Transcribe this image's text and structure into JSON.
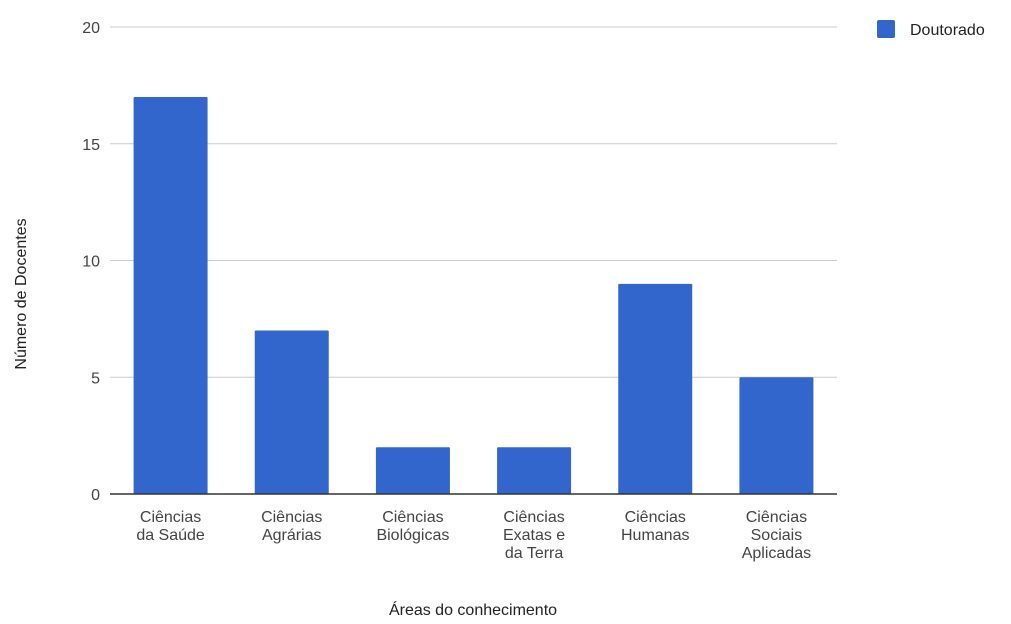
{
  "chart_data": {
    "type": "bar",
    "categories": [
      [
        "Ciências",
        "da Saúde"
      ],
      [
        "Ciências",
        "Agrárias"
      ],
      [
        "Ciências",
        "Biológicas"
      ],
      [
        "Ciências",
        "Exatas e",
        "da Terra"
      ],
      [
        "Ciências",
        "Humanas"
      ],
      [
        "Ciências",
        "Sociais",
        "Aplicadas"
      ]
    ],
    "series": [
      {
        "name": "Doutorado",
        "color": "#3366cc",
        "values": [
          17,
          7,
          2,
          2,
          9,
          5
        ]
      }
    ],
    "xlabel": "Áreas do conhecimento",
    "ylabel": "Número de Docentes",
    "ylim": [
      0,
      20
    ],
    "yticks": [
      0,
      5,
      10,
      15,
      20
    ],
    "grid": true,
    "legend_position": "top-right"
  }
}
